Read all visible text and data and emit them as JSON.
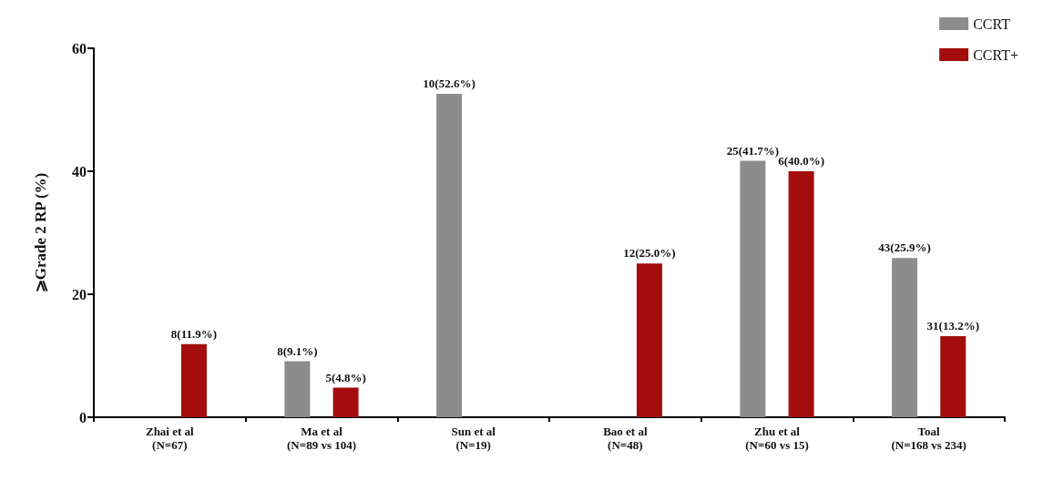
{
  "chart_data": {
    "type": "bar",
    "ylabel": "⩾Grade 2 RP (%)",
    "categories": [
      "Zhai et al\n(N=67)",
      "Ma et al\n(N=89 vs 104)",
      "Sun et al\n(N=19)",
      "Bao et al\n(N=48)",
      "Zhu et al\n(N=60 vs 15)",
      "Toal\n(N=168 vs 234)"
    ],
    "series": [
      {
        "name": "CCRT",
        "color": "#8c8c8c",
        "values": [
          null,
          9.1,
          52.6,
          null,
          41.7,
          25.9
        ],
        "value_labels": [
          null,
          "8(9.1%)",
          "10(52.6%)",
          null,
          "25(41.7%)",
          "43(25.9%)"
        ]
      },
      {
        "name": "CCRT+",
        "color": "#a30d0d",
        "values": [
          11.9,
          4.8,
          null,
          25.0,
          40.0,
          13.2
        ],
        "value_labels": [
          "8(11.9%)",
          "5(4.8%)",
          null,
          "12(25.0%)",
          "6(40.0%)",
          "31(13.2%)"
        ]
      }
    ],
    "ylim": [
      0,
      60
    ],
    "yticks": [
      0,
      20,
      40,
      60
    ],
    "grid": false,
    "legend": "top right"
  }
}
